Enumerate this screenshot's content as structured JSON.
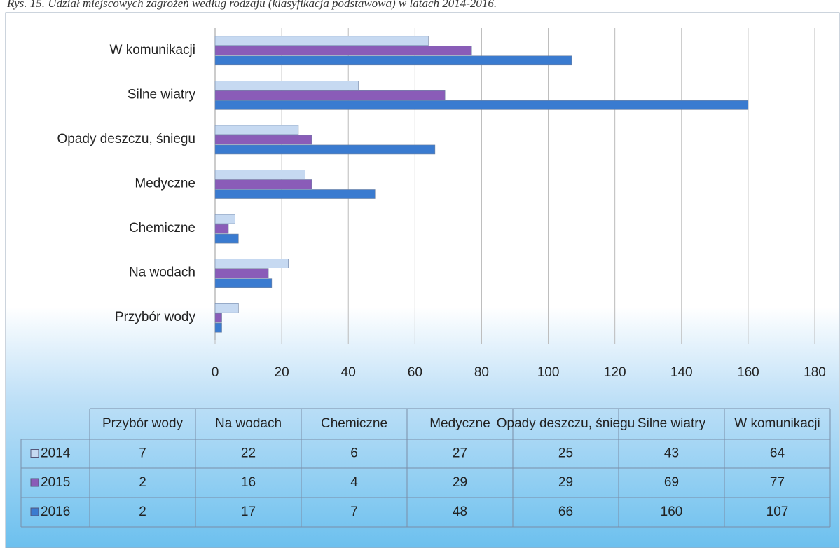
{
  "chart_data": {
    "type": "bar",
    "orientation": "horizontal",
    "title": "Rys. 15. Udział miejscowych zagrożeń według rodzaju (klasyfikacja podstawowa) w latach 2014-2016.",
    "categories": [
      "Przybór wody",
      "Na wodach",
      "Chemiczne",
      "Medyczne",
      "Opady deszczu, śniegu",
      "Silne wiatry",
      "W komunikacji"
    ],
    "series": [
      {
        "name": "2014",
        "color": "#c6d9f1",
        "values": [
          7,
          22,
          6,
          27,
          25,
          43,
          64
        ]
      },
      {
        "name": "2015",
        "color": "#8a5cb8",
        "values": [
          2,
          16,
          4,
          29,
          29,
          69,
          77
        ]
      },
      {
        "name": "2016",
        "color": "#3a7bd0",
        "values": [
          2,
          17,
          7,
          48,
          66,
          160,
          107
        ]
      }
    ],
    "xlim": [
      0,
      180
    ],
    "xticks": [
      0,
      20,
      40,
      60,
      80,
      100,
      120,
      140,
      160,
      180
    ],
    "grid": true,
    "data_table": true
  }
}
